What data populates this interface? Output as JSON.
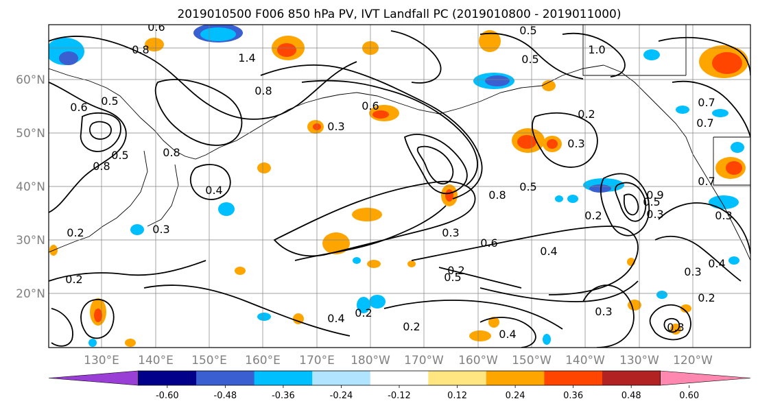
{
  "title": "2019010500 F006 850 hPa PV, IVT Landfall PC (2019010800 - 2019011000)",
  "lat_labels": [
    "60°N",
    "50°N",
    "40°N",
    "30°N",
    "20°N"
  ],
  "lon_labels": [
    "130°E",
    "140°E",
    "150°E",
    "160°E",
    "170°E",
    "180°W",
    "170°W",
    "160°W",
    "150°W",
    "140°W",
    "130°W",
    "120°W"
  ],
  "colorbar": {
    "colors": [
      "#9a3fd6",
      "#00008b",
      "#3a5fd0",
      "#00bfff",
      "#b0e4ff",
      "#ffffff",
      "#ffe680",
      "#ffa500",
      "#ff4500",
      "#b22222",
      "#ff88b0"
    ],
    "tick_labels": [
      "-0.60",
      "-0.48",
      "-0.36",
      "-0.24",
      "-0.12",
      "0.12",
      "0.24",
      "0.36",
      "0.48",
      "0.60"
    ]
  },
  "contour_labels": [
    "0.6",
    "0.8",
    "1.4",
    "0.5",
    "0.5",
    "0.8",
    "1.0",
    "0.8",
    "0.5",
    "0.6",
    "0.7",
    "0.5",
    "0.8",
    "0.6",
    "0.3",
    "0.2",
    "0.3",
    "0.4",
    "0.7",
    "0.5",
    "0.8",
    "0.3",
    "0.3",
    "0.4",
    "0.5",
    "0.4",
    "0.6",
    "0.3",
    "0.2",
    "0.9",
    "0.2",
    "0.2",
    "0.4",
    "0.3",
    "0.2",
    "0.2",
    "0.2",
    "0.2",
    "0.3",
    "0.4",
    "0.3",
    "0.5",
    "0.7",
    "0.2",
    "0.3"
  ]
}
